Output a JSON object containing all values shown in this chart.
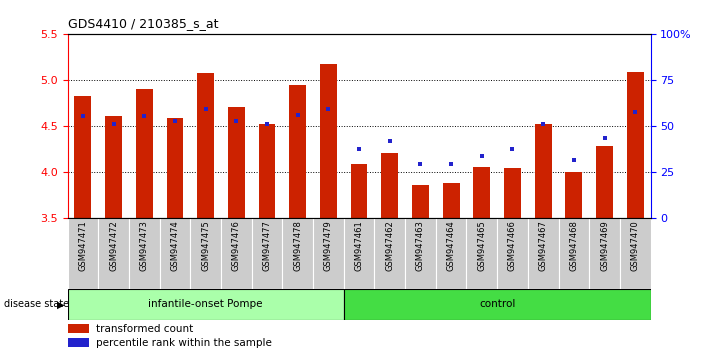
{
  "title": "GDS4410 / 210385_s_at",
  "samples": [
    "GSM947471",
    "GSM947472",
    "GSM947473",
    "GSM947474",
    "GSM947475",
    "GSM947476",
    "GSM947477",
    "GSM947478",
    "GSM947479",
    "GSM947461",
    "GSM947462",
    "GSM947463",
    "GSM947464",
    "GSM947465",
    "GSM947466",
    "GSM947467",
    "GSM947468",
    "GSM947469",
    "GSM947470"
  ],
  "bar_values": [
    4.82,
    4.6,
    4.9,
    4.58,
    5.07,
    4.7,
    4.52,
    4.94,
    5.17,
    4.08,
    4.2,
    3.86,
    3.88,
    4.05,
    4.04,
    4.52,
    4.0,
    4.28,
    5.08
  ],
  "blue_values": [
    4.6,
    4.52,
    4.6,
    4.55,
    4.68,
    4.55,
    4.52,
    4.62,
    4.68,
    4.25,
    4.33,
    4.08,
    4.08,
    4.17,
    4.25,
    4.52,
    4.13,
    4.37,
    4.65
  ],
  "group1_label": "infantile-onset Pompe",
  "group1_count": 9,
  "group2_label": "control",
  "group2_count": 10,
  "disease_state_label": "disease state",
  "legend_red": "transformed count",
  "legend_blue": "percentile rank within the sample",
  "ymin": 3.5,
  "ymax": 5.5,
  "yticks": [
    3.5,
    4.0,
    4.5,
    5.0,
    5.5
  ],
  "right_yticks": [
    0,
    25,
    50,
    75,
    100
  ],
  "right_ytick_labels": [
    "0",
    "25",
    "50",
    "75",
    "100%"
  ],
  "bar_color": "#CC2200",
  "blue_color": "#2222CC",
  "group1_bg": "#AAFFAA",
  "group2_bg": "#44DD44",
  "tick_bg": "#CCCCCC",
  "bar_width": 0.55
}
